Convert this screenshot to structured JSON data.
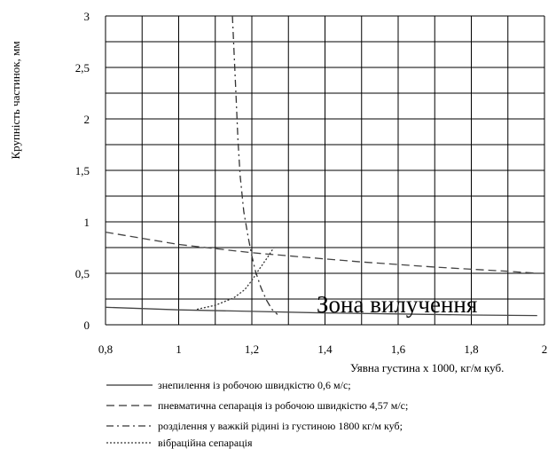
{
  "chart_data": {
    "type": "line",
    "xlabel": "Уявна густина х 1000, кг/м куб.",
    "ylabel": "Крупність частинок, мм",
    "xlim": [
      0.8,
      2.0
    ],
    "ylim": [
      0,
      3
    ],
    "x_ticks": [
      "0,8",
      "1",
      "1,2",
      "1,4",
      "1,6",
      "1,8",
      "2"
    ],
    "y_ticks": [
      "0",
      "0,5",
      "1",
      "1,5",
      "2",
      "2,5",
      "3"
    ],
    "grid": true,
    "x_grid_step": 0.1,
    "y_grid_step": 0.25,
    "annotation": "Зона вилучення",
    "legend_position": "bottom",
    "series": [
      {
        "name": "знепилення із робочою швидкістю 0,6 м/с;",
        "style": "solid",
        "x": [
          0.8,
          1.0,
          1.2,
          1.4,
          1.6,
          1.8,
          1.98
        ],
        "y": [
          0.17,
          0.145,
          0.13,
          0.115,
          0.105,
          0.095,
          0.09
        ]
      },
      {
        "name": "пневматична сепарація із робочою швидкістю 4,57 м/с;",
        "style": "dashed",
        "x": [
          0.8,
          0.9,
          1.0,
          1.1,
          1.2,
          1.3,
          1.4,
          1.5,
          1.6,
          1.7,
          1.8,
          1.9,
          1.98
        ],
        "y": [
          0.9,
          0.84,
          0.78,
          0.74,
          0.7,
          0.67,
          0.64,
          0.61,
          0.585,
          0.56,
          0.54,
          0.52,
          0.5
        ]
      },
      {
        "name": "розділення у важкій рідині із густиною 1800 кг/м куб;",
        "style": "dash-dot",
        "x": [
          1.147,
          1.152,
          1.157,
          1.162,
          1.168,
          1.178,
          1.19,
          1.2,
          1.21,
          1.225,
          1.24,
          1.255,
          1.27
        ],
        "y": [
          3.0,
          2.6,
          2.2,
          1.8,
          1.45,
          1.1,
          0.85,
          0.67,
          0.52,
          0.36,
          0.24,
          0.15,
          0.1
        ]
      },
      {
        "name": "вібраційна сепарація",
        "style": "dotted",
        "x": [
          1.05,
          1.1,
          1.15,
          1.18,
          1.2,
          1.22,
          1.24,
          1.26
        ],
        "y": [
          0.15,
          0.19,
          0.26,
          0.34,
          0.43,
          0.54,
          0.64,
          0.75
        ]
      }
    ]
  }
}
